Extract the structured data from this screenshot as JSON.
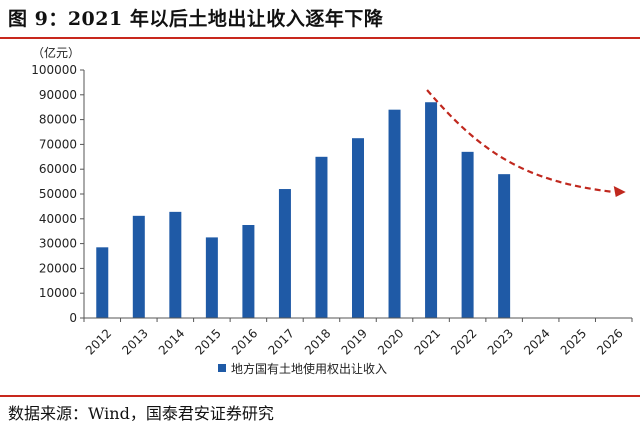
{
  "figure": {
    "title": "图 9：2021 年以后土地出让收入逐年下降",
    "source": "数据来源：Wind，国泰君安证券研究"
  },
  "colors": {
    "bar": "#1f5aa6",
    "trend": "#c0281e",
    "rule": "#c8281d"
  },
  "chart_data": {
    "type": "bar",
    "ylabel": "（亿元）",
    "ylim": [
      0,
      100000
    ],
    "yticks": [
      0,
      10000,
      20000,
      30000,
      40000,
      50000,
      60000,
      70000,
      80000,
      90000,
      100000
    ],
    "categories": [
      "2012",
      "2013",
      "2014",
      "2015",
      "2016",
      "2017",
      "2018",
      "2019",
      "2020",
      "2021",
      "2022",
      "2023",
      "2024",
      "2025",
      "2026"
    ],
    "series": [
      {
        "name": "地方国有土地使用权出让收入",
        "values": [
          28500,
          41200,
          42800,
          32500,
          37500,
          52000,
          65000,
          72500,
          84000,
          87000,
          67000,
          58000,
          null,
          null,
          null
        ]
      }
    ],
    "legend": "bottom-center",
    "grid": false,
    "annotations": [
      {
        "type": "dashed-trend-arrow",
        "direction": "downward",
        "from_category": "2021",
        "to_category": "2026"
      }
    ]
  }
}
